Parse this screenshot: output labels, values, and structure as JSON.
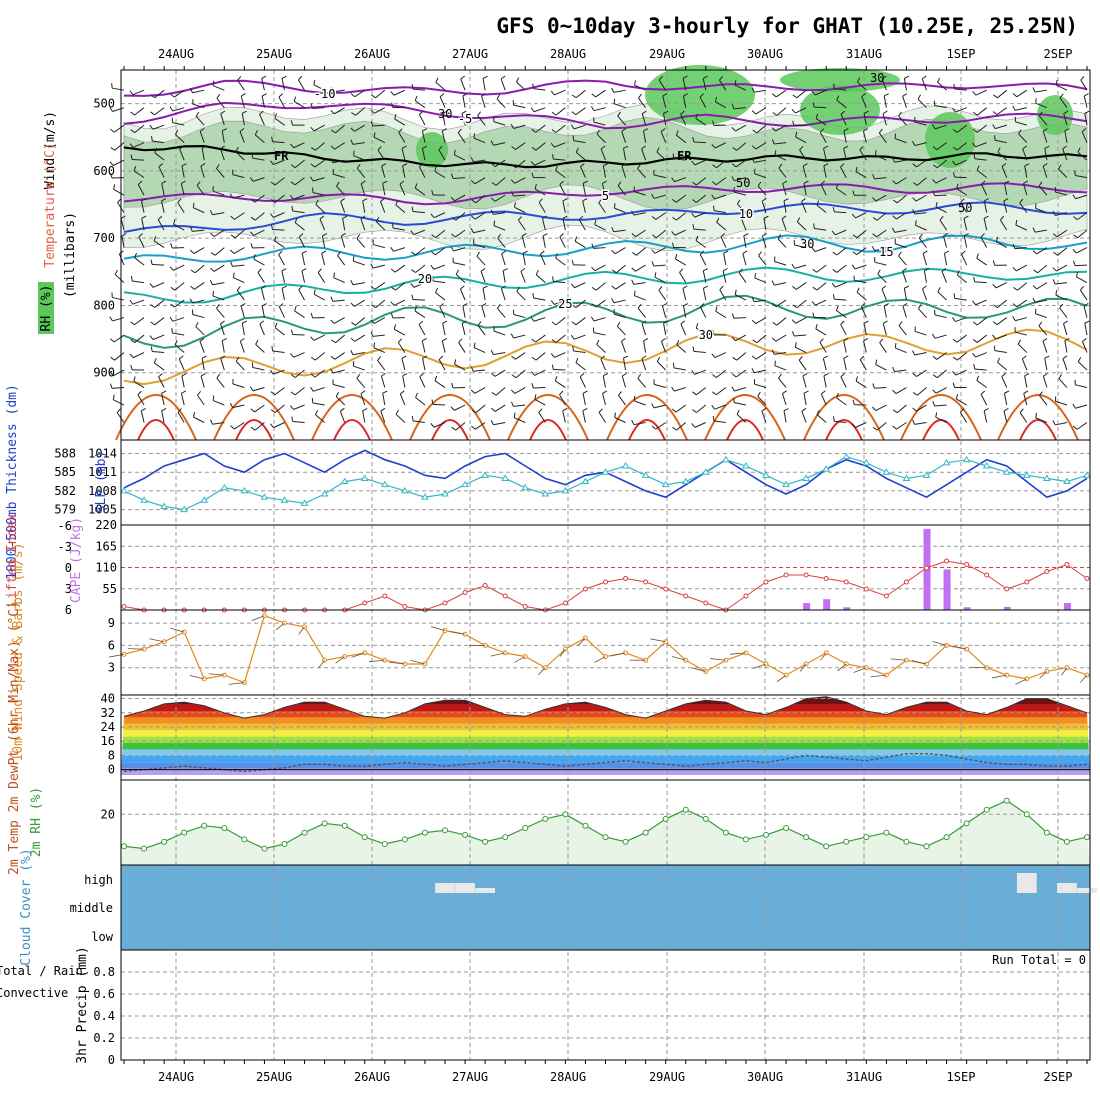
{
  "title": "GFS 0~10day 3-hourly for GHAT (10.25E, 25.25N)",
  "colors": {
    "rh_light": "#e6f2e6",
    "rh_mid": "#b4d7b4",
    "rh_dark": "#5ac85a",
    "temp_purple": "#8a1ab0",
    "temp_blue": "#2a4ad8",
    "temp_cyan": "#18a0c8",
    "temp_teal": "#18b0a0",
    "temp_green": "#2a9a6a",
    "temp_orange": "#e0a030",
    "temp_dark_orange": "#d86418",
    "temp_red": "#e02828",
    "thickness": "#1f3fd0",
    "slp": "#33b8c8",
    "lifted": "#d84040",
    "cape": "#c070f0",
    "wind": "#e08a20",
    "rh2m": "#3a9a3a",
    "cloud_bg": "#6aaed8",
    "cloud_fill": "#e8e8e8"
  },
  "chart_data": [
    {
      "type": "contour",
      "panel": "upper-air",
      "ylabel_parts": [
        "Wind (m/s)",
        "Temperature (°C)",
        "RH (%)"
      ],
      "yunits": "(millibars)",
      "yticks": [
        500,
        600,
        700,
        800,
        900
      ],
      "ylim": [
        1000,
        450
      ],
      "freezing_label": "FR",
      "rh_labels": [
        "30",
        "50",
        "30",
        "50",
        "30"
      ],
      "isotherms": [
        {
          "value": -10,
          "label": "-10",
          "color_key": "temp_purple",
          "levels": [
            488,
            470,
            478,
            482,
            480,
            468,
            478,
            474,
            476,
            470,
            480
          ]
        },
        {
          "value": -5,
          "label": "-5",
          "color_key": "temp_purple",
          "levels": [
            525,
            505,
            500,
            510,
            520,
            532,
            522,
            528,
            525,
            520,
            522
          ]
        },
        {
          "value": 5,
          "label": "5",
          "color_key": "temp_purple",
          "levels": [
            640,
            640,
            638,
            645,
            638,
            630,
            628,
            624,
            628,
            624,
            626
          ]
        },
        {
          "value": 10,
          "label": "10",
          "color_key": "temp_blue",
          "levels": [
            690,
            685,
            668,
            675,
            665,
            668,
            660,
            654,
            658,
            652,
            660
          ]
        },
        {
          "value": 15,
          "label": "15",
          "color_key": "temp_cyan",
          "levels": [
            738,
            725,
            722,
            722,
            718,
            715,
            712,
            705,
            712,
            702,
            712
          ]
        },
        {
          "value": 20,
          "label": "20",
          "color_key": "temp_teal",
          "levels": [
            790,
            785,
            775,
            768,
            765,
            760,
            757,
            752,
            758,
            750,
            760
          ]
        },
        {
          "value": 25,
          "label": "25",
          "color_key": "temp_green",
          "levels": [
            850,
            840,
            825,
            820,
            815,
            812,
            805,
            800,
            810,
            800,
            810
          ]
        },
        {
          "value": 30,
          "label": "30",
          "color_key": "temp_orange",
          "levels": [
            900,
            895,
            885,
            880,
            872,
            870,
            860,
            855,
            862,
            850,
            858
          ]
        }
      ],
      "freezing_levels": [
        565,
        567,
        580,
        588,
        592,
        588,
        583,
        580,
        582,
        576,
        580
      ]
    },
    {
      "type": "line",
      "panel": "thickness-slp",
      "ylabel_left": "1000-500mb Thickness (dm)",
      "ylabel_right": "SLP (mb)",
      "left_ticks": [
        579,
        582,
        585,
        588
      ],
      "right_ticks": [
        1005,
        1008,
        1011,
        1014
      ],
      "series": [
        {
          "name": "Thickness",
          "color_key": "thickness",
          "unit": "dm",
          "values": [
            582.5,
            584,
            586,
            587,
            588,
            586,
            585,
            587,
            588,
            586.5,
            585,
            587,
            588.5,
            587,
            586,
            584.5,
            584,
            586,
            587.5,
            588,
            586,
            584,
            583,
            584.5,
            585,
            583.5,
            582,
            581,
            583,
            585,
            587,
            585,
            583,
            581.5,
            583,
            585.5,
            587,
            586,
            584,
            582.5,
            581,
            583,
            585,
            587,
            586,
            583.5,
            581,
            582,
            584
          ]
        },
        {
          "name": "SLP",
          "color_key": "slp",
          "unit": "mb",
          "values": [
            1008,
            1006.5,
            1005.5,
            1005,
            1006.5,
            1008.5,
            1008,
            1007,
            1006.5,
            1006,
            1007.5,
            1009.5,
            1010,
            1009,
            1008,
            1007,
            1007.5,
            1009,
            1010.5,
            1010,
            1008.5,
            1007.5,
            1008,
            1009.5,
            1011,
            1012,
            1010.5,
            1009,
            1009.5,
            1011,
            1013,
            1012,
            1010.5,
            1009,
            1010,
            1011.5,
            1013.5,
            1012.5,
            1011,
            1010,
            1010.5,
            1012.5,
            1013,
            1012,
            1011,
            1010.5,
            1010,
            1009.5,
            1010.5
          ]
        }
      ]
    },
    {
      "type": "bar+line",
      "panel": "cape-lifted",
      "ylabel_left": "Lifted Index",
      "ylabel_right": "CAPE (J/kg)",
      "left_ticks": [
        "-6",
        "-3",
        "0",
        "3",
        "6"
      ],
      "right_ticks": [
        "55",
        "110",
        "165",
        "220"
      ],
      "series": [
        {
          "name": "Lifted Index",
          "color_key": "lifted",
          "values": [
            5.5,
            6,
            6,
            6,
            6,
            6,
            6,
            6,
            6,
            6,
            6,
            6,
            5,
            4,
            5.5,
            6,
            5,
            3.5,
            2.5,
            4,
            5.5,
            6,
            5,
            3,
            2,
            1.5,
            2,
            3,
            4,
            5,
            6,
            4,
            2,
            1,
            1,
            1.5,
            2,
            3,
            4,
            2,
            0,
            -1,
            -0.5,
            1,
            3,
            2,
            0.5,
            -0.5,
            1.5
          ]
        },
        {
          "name": "CAPE",
          "color_key": "cape",
          "bar_index": [
            34,
            35,
            36,
            40,
            41,
            42,
            44,
            47
          ],
          "values": [
            18,
            28,
            7,
            210,
            105,
            7,
            8,
            18
          ]
        }
      ]
    },
    {
      "type": "line",
      "panel": "wind10m",
      "ylabel": "10m Wind Speed & Barbs (m/s)",
      "yticks": [
        "3",
        "6",
        "9"
      ],
      "ylim": [
        0,
        10.5
      ],
      "series": [
        {
          "name": "10m Wind",
          "color_key": "wind",
          "values": [
            4.8,
            5.5,
            6.5,
            7.8,
            1.5,
            2,
            1,
            10,
            9,
            8.5,
            4,
            4.5,
            5,
            4,
            3.5,
            3.5,
            8,
            7.5,
            6,
            5,
            4.5,
            3,
            5.5,
            7,
            4.5,
            5,
            4,
            6.5,
            4,
            2.5,
            4,
            5,
            3.5,
            2,
            3.5,
            5,
            3.5,
            3,
            2,
            4,
            3.5,
            6,
            5.5,
            3,
            2,
            1.5,
            2.5,
            3,
            2
          ]
        }
      ]
    },
    {
      "type": "area",
      "panel": "temp2m",
      "ylabel": "2m Temp 2m DewPt (6hr Min/Max) (°C)",
      "yticks": [
        "0",
        "8",
        "16",
        "24",
        "32",
        "40"
      ],
      "ylim": [
        -3,
        42
      ],
      "series": [
        {
          "name": "2m Temp",
          "values": [
            30,
            33,
            37,
            38,
            36,
            32,
            29,
            31,
            35,
            38,
            38,
            34,
            30,
            29,
            32,
            37,
            39,
            39,
            35,
            31,
            30,
            34,
            37,
            38,
            35,
            31,
            29,
            33,
            37,
            39,
            38,
            33,
            31,
            35,
            40,
            41,
            38,
            33,
            31,
            35,
            38,
            38,
            33,
            31,
            35,
            40,
            40,
            36,
            32
          ]
        },
        {
          "name": "2m DewPt",
          "values": [
            -1,
            0,
            1,
            2,
            1,
            0,
            -1,
            0,
            1,
            3,
            3,
            2,
            2,
            3,
            4,
            3,
            2,
            3,
            4,
            5,
            4,
            3,
            2,
            3,
            4,
            5,
            4,
            3,
            2,
            3,
            4,
            5,
            4,
            6,
            8,
            7,
            6,
            5,
            7,
            9,
            9,
            8,
            6,
            4,
            3,
            3,
            2,
            2,
            3
          ]
        }
      ]
    },
    {
      "type": "line",
      "panel": "rh2m",
      "ylabel": "2m RH (%)",
      "yticks": [
        "20"
      ],
      "ylim": [
        0,
        35
      ],
      "series": [
        {
          "name": "2m RH",
          "color_key": "rh2m",
          "values": [
            6,
            5,
            8,
            12,
            15,
            14,
            9,
            5,
            7,
            12,
            16,
            15,
            10,
            7,
            9,
            12,
            13,
            11,
            8,
            10,
            14,
            18,
            20,
            15,
            10,
            8,
            12,
            18,
            22,
            18,
            12,
            9,
            11,
            14,
            10,
            6,
            8,
            10,
            12,
            8,
            6,
            10,
            16,
            22,
            26,
            20,
            12,
            8,
            10
          ]
        }
      ]
    },
    {
      "type": "bar",
      "panel": "cloud",
      "ylabel": "Cloud Cover (%)",
      "yticks": [
        "high",
        "middle",
        "low"
      ],
      "levels": [
        "high",
        "middle"
      ],
      "high_values": [
        0,
        0,
        0,
        0,
        0,
        0,
        0,
        0,
        0,
        0,
        0,
        0,
        0,
        0,
        0,
        0,
        10,
        10,
        5,
        0,
        0,
        0,
        0,
        0,
        0,
        0,
        0,
        0,
        0,
        0,
        0,
        0,
        0,
        0,
        0,
        0,
        0,
        0,
        0,
        0,
        0,
        0,
        0,
        0,
        0,
        20,
        0,
        10,
        5
      ],
      "middle_values": [
        0,
        0,
        0,
        0,
        0,
        0,
        0,
        0,
        0,
        0,
        0,
        0,
        0,
        0,
        0,
        0,
        0,
        0,
        0,
        0,
        0,
        0,
        0,
        0,
        0,
        0,
        0,
        0,
        0,
        0,
        0,
        0,
        0,
        0,
        0,
        0,
        0,
        0,
        0,
        0,
        0,
        0,
        0,
        0,
        0,
        0,
        0,
        0,
        0
      ]
    },
    {
      "type": "bar",
      "panel": "precip",
      "ylabel_parts": [
        "3hr Precip (mm)",
        "Total / Rain",
        "Convective"
      ],
      "yticks": [
        "0",
        "0.2",
        "0.4",
        "0.6",
        "0.8"
      ],
      "ylim": [
        0,
        1
      ],
      "run_total": "Run Total = 0",
      "values": []
    }
  ],
  "xaxis": {
    "dates": [
      "24AUG",
      "25AUG",
      "26AUG",
      "27AUG",
      "28AUG",
      "29AUG",
      "30AUG",
      "31AUG",
      "1SEP",
      "2SEP"
    ],
    "steps": 49
  }
}
